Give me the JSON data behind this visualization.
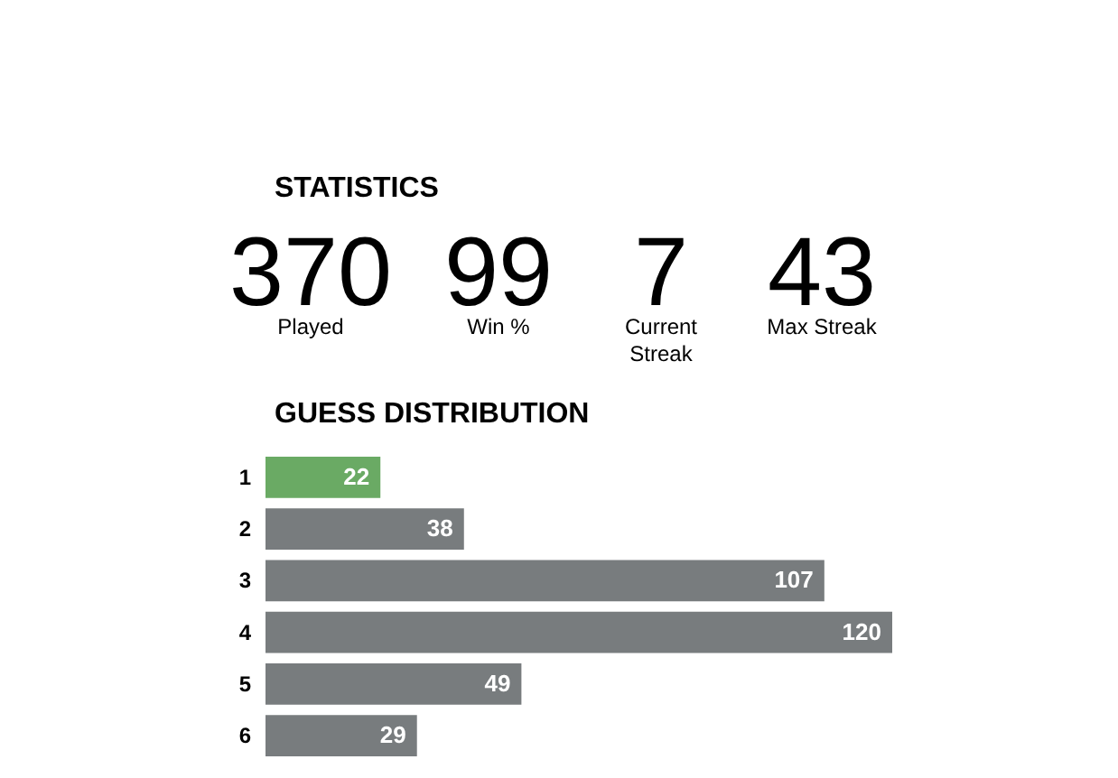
{
  "chart_data": [
    {
      "type": "other",
      "title": "STATISTICS",
      "annotations": [
        "370",
        "Played",
        "99",
        "Win %",
        "7",
        "Current Streak",
        "43",
        "Max Streak"
      ]
    },
    {
      "type": "bar",
      "orientation": "horizontal",
      "title": "GUESS DISTRIBUTION",
      "categories": [
        "1",
        "2",
        "3",
        "4",
        "5",
        "6"
      ],
      "values": [
        22,
        38,
        107,
        120,
        49,
        29
      ],
      "colors": [
        "#6aaa64",
        "#787c7e",
        "#787c7e",
        "#787c7e",
        "#787c7e",
        "#787c7e"
      ],
      "data_labels": true,
      "tick_labels": "y"
    }
  ]
}
